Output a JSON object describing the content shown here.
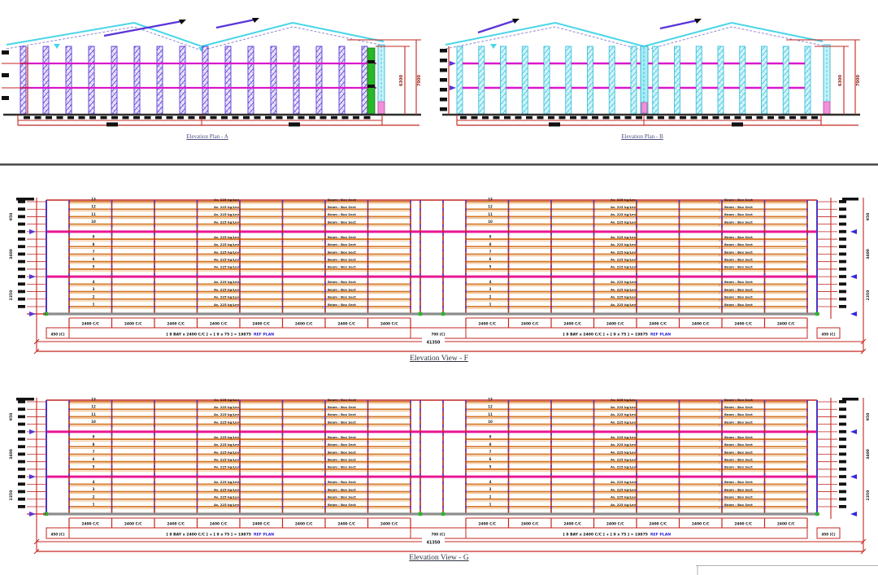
{
  "top_section": {
    "views": [
      {
        "caption": "Elevation Plan - A",
        "dim_inner": "6300",
        "dim_outer": "7000"
      },
      {
        "caption": "Elevation Plan - B",
        "dim_inner": "6300",
        "dim_outer": "7000"
      }
    ]
  },
  "rack_section": {
    "views": [
      {
        "caption": "Elevation View - F"
      },
      {
        "caption": "Elevation View - G"
      }
    ],
    "levels": [
      "13",
      "12",
      "11",
      "10",
      "9",
      "8",
      "7",
      "6",
      "5",
      "4",
      "3",
      "2",
      "1"
    ],
    "bays_per_run": 8,
    "bay_label": "2400 C/C",
    "formula_black": "[ 8 BAY x 2400 C/C ] + [ 9 x 75 ] = 19875",
    "formula_blue": "REF PLAN",
    "edge_cell_label": "450 (C)",
    "center_cell_label": "700 (C)",
    "overall_label": "41350",
    "side_dim_labels": [
      "950",
      "3400",
      "2350"
    ],
    "level_note": "Av. 225 kg/Lev",
    "beam_note": "Beam : Box Sect"
  },
  "colors": {
    "roof_cyan": "#49d6e8",
    "magenta_top": "#d818cc",
    "magenta_rack": "#ea1694",
    "beam_orange": "#d4782a",
    "beam_orange_light": "#f0be85",
    "dim_red": "#c22720",
    "post_red": "#b02a1e",
    "frame_blue": "#4a35cc",
    "truss_purple": "#5a35d8",
    "truss_purple_fill": "#eae6fb",
    "truss_cyan": "#38c2dc",
    "truss_cyan_fill": "#d8f6fb",
    "green": "#28b828",
    "pink": "#f090d8",
    "ground_gray": "#8e8e8e",
    "formula_blue_color": "#2a1fd8",
    "note_dark": "#33220e"
  }
}
